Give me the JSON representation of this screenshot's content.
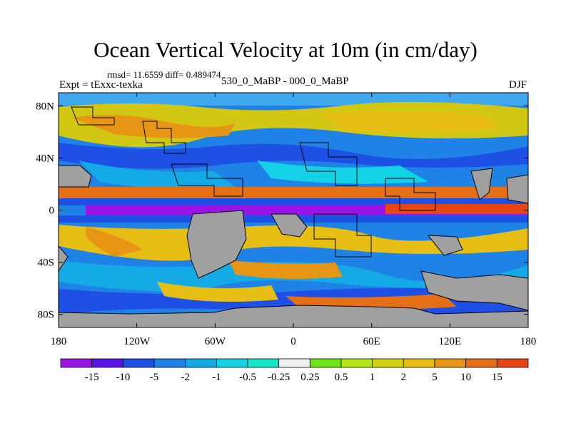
{
  "title": "Ocean Vertical Velocity at 10m (in cm/day)",
  "stats": "rmsd= 11.6559 diff= 0.489474",
  "experiment": "Expt = tExxc-texka",
  "period": "530_0_MaBP - 000_0_MaBP",
  "season": "DJF",
  "map": {
    "projection": "cylindrical-equidistant",
    "lon_range": [
      -180,
      180
    ],
    "lat_range": [
      -90,
      90
    ],
    "y_ticks": [
      {
        "value": 80,
        "label": "80N"
      },
      {
        "value": 40,
        "label": "40N"
      },
      {
        "value": 0,
        "label": "0"
      },
      {
        "value": -40,
        "label": "40S"
      },
      {
        "value": -80,
        "label": "80S"
      }
    ],
    "x_ticks": [
      {
        "value": -180,
        "label": "180"
      },
      {
        "value": -120,
        "label": "120W"
      },
      {
        "value": -60,
        "label": "60W"
      },
      {
        "value": 0,
        "label": "0"
      },
      {
        "value": 60,
        "label": "60E"
      },
      {
        "value": 120,
        "label": "120E"
      },
      {
        "value": 180,
        "label": "180"
      }
    ],
    "land_color": "#a0a0a0"
  },
  "colorbar": {
    "colors": [
      "#9a14e6",
      "#5a14e6",
      "#1e50e6",
      "#1e82e6",
      "#14aae6",
      "#14d2e6",
      "#14e6c8",
      "#f0f0f0",
      "#6ee614",
      "#b4e614",
      "#d2d214",
      "#e6be14",
      "#e69614",
      "#e66e14",
      "#e64614"
    ],
    "labels": [
      "-15",
      "-10",
      "-5",
      "-2",
      "-1",
      "-0.5",
      "-0.25",
      "0.25",
      "0.5",
      "1",
      "2",
      "5",
      "10",
      "15"
    ]
  }
}
